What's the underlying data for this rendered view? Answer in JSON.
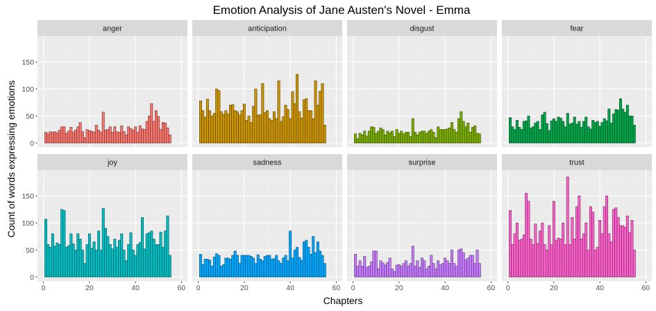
{
  "chart_data": {
    "type": "bar",
    "layout": "facet-grid-2x4",
    "title": "Emotion Analysis of Jane Austen's Novel - Emma",
    "xlabel": "Chapters",
    "ylabel": "Count of words expressing emotions",
    "xlim": [
      0,
      60
    ],
    "ylim": [
      0,
      190
    ],
    "xticks": [
      "0",
      "20",
      "40",
      "60"
    ],
    "yticks": [
      "0",
      "50",
      "100",
      "150"
    ],
    "grid": true,
    "x": [
      1,
      2,
      3,
      4,
      5,
      6,
      7,
      8,
      9,
      10,
      11,
      12,
      13,
      14,
      15,
      16,
      17,
      18,
      19,
      20,
      21,
      22,
      23,
      24,
      25,
      26,
      27,
      28,
      29,
      30,
      31,
      32,
      33,
      34,
      35,
      36,
      37,
      38,
      39,
      40,
      41,
      42,
      43,
      44,
      45,
      46,
      47,
      48,
      49,
      50,
      51,
      52,
      53,
      54,
      55
    ],
    "panels": [
      {
        "name": "anger",
        "color": "#F8766D",
        "values": [
          20,
          17,
          21,
          20,
          21,
          19,
          24,
          30,
          30,
          18,
          22,
          29,
          20,
          24,
          30,
          38,
          21,
          10,
          25,
          23,
          22,
          20,
          33,
          24,
          20,
          57,
          24,
          25,
          30,
          20,
          30,
          21,
          20,
          32,
          21,
          15,
          30,
          27,
          24,
          30,
          20,
          32,
          26,
          25,
          40,
          50,
          73,
          40,
          60,
          49,
          25,
          38,
          37,
          28,
          15
        ]
      },
      {
        "name": "anticipation",
        "color": "#CD9600",
        "values": [
          78,
          60,
          48,
          81,
          60,
          50,
          55,
          100,
          97,
          58,
          53,
          60,
          54,
          70,
          71,
          60,
          58,
          52,
          60,
          72,
          42,
          50,
          38,
          68,
          100,
          52,
          52,
          110,
          56,
          60,
          45,
          42,
          58,
          45,
          115,
          40,
          49,
          70,
          62,
          45,
          95,
          73,
          127,
          58,
          46,
          80,
          82,
          60,
          60,
          45,
          115,
          70,
          96,
          110,
          33
        ]
      },
      {
        "name": "disgust",
        "color": "#7CAE00",
        "values": [
          17,
          8,
          18,
          15,
          22,
          13,
          22,
          30,
          29,
          18,
          22,
          28,
          25,
          15,
          22,
          19,
          22,
          12,
          25,
          18,
          22,
          17,
          20,
          20,
          12,
          45,
          20,
          15,
          20,
          22,
          22,
          18,
          22,
          25,
          20,
          10,
          30,
          25,
          25,
          25,
          26,
          28,
          38,
          25,
          20,
          45,
          58,
          40,
          30,
          37,
          20,
          29,
          32,
          18,
          17
        ]
      },
      {
        "name": "fear",
        "color": "#00A64A",
        "values": [
          47,
          30,
          25,
          42,
          29,
          25,
          40,
          41,
          50,
          28,
          30,
          37,
          40,
          25,
          52,
          57,
          36,
          23,
          41,
          45,
          40,
          48,
          46,
          40,
          30,
          55,
          35,
          37,
          48,
          35,
          40,
          29,
          40,
          48,
          30,
          26,
          42,
          38,
          40,
          31,
          38,
          45,
          41,
          63,
          37,
          54,
          62,
          61,
          82,
          63,
          57,
          70,
          50,
          50,
          33
        ]
      },
      {
        "name": "joy",
        "color": "#00BFC4",
        "values": [
          107,
          60,
          55,
          80,
          57,
          63,
          60,
          125,
          123,
          55,
          58,
          80,
          61,
          50,
          80,
          70,
          50,
          25,
          60,
          80,
          53,
          65,
          50,
          85,
          50,
          127,
          90,
          75,
          60,
          52,
          70,
          55,
          68,
          80,
          50,
          30,
          60,
          82,
          50,
          40,
          60,
          64,
          110,
          52,
          80,
          82,
          85,
          70,
          60,
          60,
          83,
          55,
          85,
          113,
          40
        ]
      },
      {
        "name": "sadness",
        "color": "#00A9FF",
        "values": [
          42,
          23,
          33,
          33,
          31,
          20,
          37,
          43,
          40,
          20,
          23,
          35,
          35,
          33,
          40,
          48,
          40,
          25,
          40,
          40,
          40,
          40,
          38,
          35,
          25,
          41,
          33,
          30,
          38,
          40,
          40,
          33,
          34,
          40,
          30,
          25,
          35,
          40,
          30,
          85,
          35,
          50,
          55,
          36,
          31,
          65,
          68,
          55,
          42,
          75,
          45,
          65,
          48,
          40,
          25
        ]
      },
      {
        "name": "surprise",
        "color": "#C77CFF",
        "values": [
          42,
          20,
          30,
          20,
          38,
          18,
          20,
          28,
          48,
          48,
          15,
          30,
          26,
          22,
          27,
          35,
          15,
          10,
          22,
          23,
          20,
          25,
          30,
          20,
          25,
          57,
          20,
          30,
          18,
          35,
          30,
          15,
          20,
          40,
          25,
          15,
          30,
          23,
          25,
          35,
          30,
          25,
          50,
          25,
          20,
          50,
          52,
          45,
          32,
          35,
          40,
          40,
          25,
          50,
          25
        ]
      },
      {
        "name": "trust",
        "color": "#FF61CC",
        "values": [
          123,
          60,
          80,
          100,
          68,
          70,
          78,
          155,
          140,
          70,
          60,
          98,
          62,
          85,
          100,
          60,
          50,
          95,
          60,
          140,
          68,
          72,
          70,
          100,
          60,
          185,
          60,
          110,
          70,
          130,
          150,
          70,
          80,
          100,
          50,
          130,
          120,
          50,
          55,
          105,
          80,
          130,
          150,
          80,
          65,
          125,
          128,
          110,
          95,
          95,
          92,
          113,
          82,
          105,
          50
        ]
      }
    ]
  }
}
